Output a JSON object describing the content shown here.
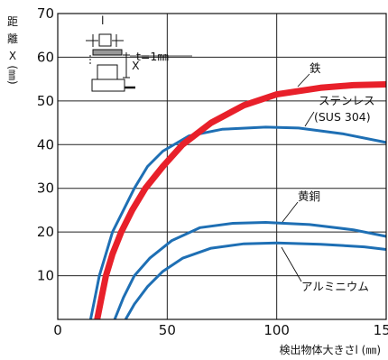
{
  "chart_data": {
    "type": "line",
    "title": "",
    "xlabel": "検出物体大きさl (㎜)",
    "ylabel_chars": [
      "距",
      "離",
      "X",
      "(㎜)"
    ],
    "xlim": [
      0,
      150
    ],
    "ylim": [
      0,
      70
    ],
    "xticks": [
      0,
      50,
      100,
      150
    ],
    "yticks": [
      10,
      20,
      30,
      40,
      50,
      60,
      70
    ],
    "grid": true,
    "inset_label": "t=1㎜",
    "series": [
      {
        "name": "鉄",
        "color": "#e8202a",
        "points": [
          [
            18,
            0
          ],
          [
            20,
            5
          ],
          [
            22,
            10
          ],
          [
            25,
            15
          ],
          [
            29,
            20
          ],
          [
            34,
            25
          ],
          [
            40,
            30
          ],
          [
            48,
            35
          ],
          [
            57,
            40
          ],
          [
            70,
            45
          ],
          [
            85,
            49
          ],
          [
            100,
            51.5
          ],
          [
            120,
            53
          ],
          [
            135,
            53.6
          ],
          [
            150,
            53.8
          ]
        ]
      },
      {
        "name": "ステンレス",
        "name_line2": "(SUS 304)",
        "color": "#1e6fb4",
        "points": [
          [
            15,
            0
          ],
          [
            17,
            5
          ],
          [
            19,
            10
          ],
          [
            22,
            15
          ],
          [
            25,
            20
          ],
          [
            30,
            25
          ],
          [
            35,
            30
          ],
          [
            41,
            35
          ],
          [
            48,
            38.5
          ],
          [
            60,
            42
          ],
          [
            75,
            43.5
          ],
          [
            95,
            44
          ],
          [
            110,
            43.8
          ],
          [
            130,
            42.5
          ],
          [
            150,
            40.5
          ]
        ]
      },
      {
        "name": "黄銅",
        "color": "#1e6fb4",
        "points": [
          [
            26,
            0
          ],
          [
            30,
            5
          ],
          [
            35,
            10
          ],
          [
            42,
            14
          ],
          [
            52,
            18
          ],
          [
            65,
            21
          ],
          [
            80,
            22
          ],
          [
            95,
            22.2
          ],
          [
            115,
            21.7
          ],
          [
            135,
            20.5
          ],
          [
            150,
            19
          ]
        ]
      },
      {
        "name": "アルミニウム",
        "color": "#1e6fb4",
        "points": [
          [
            31,
            0
          ],
          [
            35,
            3.5
          ],
          [
            41,
            7.5
          ],
          [
            48,
            11
          ],
          [
            57,
            14
          ],
          [
            70,
            16.3
          ],
          [
            85,
            17.3
          ],
          [
            100,
            17.5
          ],
          [
            120,
            17.2
          ],
          [
            140,
            16.6
          ],
          [
            150,
            16
          ]
        ]
      }
    ]
  }
}
